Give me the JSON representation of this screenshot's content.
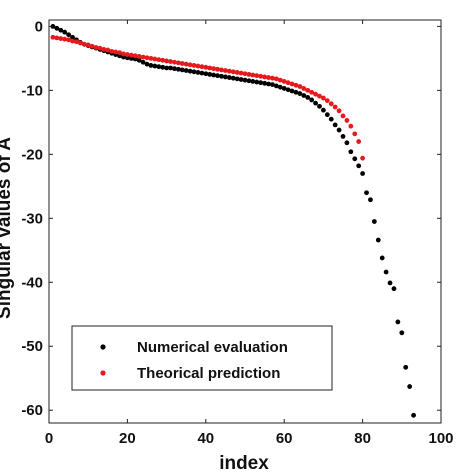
{
  "chart_data": {
    "type": "scatter",
    "xlabel": "index",
    "ylabel": "Singular values of A",
    "xlim": [
      0,
      100
    ],
    "ylim": [
      -62,
      1
    ],
    "x_ticks": [
      0,
      20,
      40,
      60,
      80,
      100
    ],
    "y_ticks": [
      0,
      -10,
      -20,
      -30,
      -40,
      -50,
      -60
    ],
    "x_tick_labels": [
      "0",
      "20",
      "40",
      "60",
      "80",
      "100"
    ],
    "y_tick_labels": [
      "0",
      "-10",
      "-20",
      "-30",
      "-40",
      "-50",
      "-60"
    ],
    "grid": false,
    "legend_position": "bottom-left",
    "series": [
      {
        "name": "Numerical evaluation",
        "color": "#000000",
        "x": [
          1,
          2,
          3,
          4,
          5,
          6,
          7,
          8,
          9,
          10,
          11,
          12,
          13,
          14,
          15,
          16,
          17,
          18,
          19,
          20,
          21,
          22,
          23,
          24,
          25,
          26,
          27,
          28,
          29,
          30,
          31,
          32,
          33,
          34,
          35,
          36,
          37,
          38,
          39,
          40,
          41,
          42,
          43,
          44,
          45,
          46,
          47,
          48,
          49,
          50,
          51,
          52,
          53,
          54,
          55,
          56,
          57,
          58,
          59,
          60,
          61,
          62,
          63,
          64,
          65,
          66,
          67,
          68,
          69,
          70,
          71,
          72,
          73,
          74,
          75,
          76,
          77,
          78,
          79,
          80,
          81,
          82,
          83,
          84,
          85,
          86,
          87,
          88,
          89,
          90,
          91,
          92,
          93
        ],
        "y": [
          0,
          -0.3,
          -0.6,
          -0.9,
          -1.3,
          -1.7,
          -2.1,
          -2.5,
          -2.8,
          -3.0,
          -3.2,
          -3.4,
          -3.6,
          -3.8,
          -4.0,
          -4.2,
          -4.4,
          -4.6,
          -4.8,
          -4.9,
          -5.0,
          -5.1,
          -5.3,
          -5.6,
          -5.9,
          -6.1,
          -6.2,
          -6.3,
          -6.4,
          -6.5,
          -6.5,
          -6.6,
          -6.7,
          -6.8,
          -6.9,
          -7.0,
          -7.1,
          -7.2,
          -7.3,
          -7.4,
          -7.5,
          -7.6,
          -7.7,
          -7.8,
          -7.9,
          -8.0,
          -8.1,
          -8.2,
          -8.3,
          -8.4,
          -8.5,
          -8.6,
          -8.7,
          -8.8,
          -8.9,
          -9.0,
          -9.1,
          -9.3,
          -9.5,
          -9.7,
          -9.9,
          -10.1,
          -10.3,
          -10.5,
          -10.8,
          -11.1,
          -11.5,
          -12.0,
          -12.5,
          -13.1,
          -13.8,
          -14.5,
          -15.4,
          -16.2,
          -17.2,
          -18.2,
          -19.6,
          -20.7,
          -21.8,
          -23.0,
          -26.0,
          -27.1,
          -30.5,
          -33.4,
          -36.2,
          -38.4,
          -40.1,
          -41.0,
          -46.2,
          -47.9,
          -53.3,
          -56.3,
          -60.8
        ]
      },
      {
        "name": "Theorical prediction",
        "color": "#e41a1c",
        "x": [
          1,
          2,
          3,
          4,
          5,
          6,
          7,
          8,
          9,
          10,
          11,
          12,
          13,
          14,
          15,
          16,
          17,
          18,
          19,
          20,
          21,
          22,
          23,
          24,
          25,
          26,
          27,
          28,
          29,
          30,
          31,
          32,
          33,
          34,
          35,
          36,
          37,
          38,
          39,
          40,
          41,
          42,
          43,
          44,
          45,
          46,
          47,
          48,
          49,
          50,
          51,
          52,
          53,
          54,
          55,
          56,
          57,
          58,
          59,
          60,
          61,
          62,
          63,
          64,
          65,
          66,
          67,
          68,
          69,
          70,
          71,
          72,
          73,
          74,
          75,
          76,
          77,
          78,
          79,
          80
        ],
        "y": [
          -1.7,
          -1.8,
          -1.9,
          -2.0,
          -2.1,
          -2.3,
          -2.4,
          -2.6,
          -2.8,
          -2.9,
          -3.1,
          -3.3,
          -3.4,
          -3.6,
          -3.7,
          -3.9,
          -4.0,
          -4.1,
          -4.3,
          -4.4,
          -4.5,
          -4.6,
          -4.7,
          -4.8,
          -4.9,
          -5.0,
          -5.1,
          -5.2,
          -5.3,
          -5.4,
          -5.5,
          -5.6,
          -5.7,
          -5.8,
          -5.9,
          -6.0,
          -6.1,
          -6.2,
          -6.3,
          -6.4,
          -6.5,
          -6.6,
          -6.7,
          -6.8,
          -6.9,
          -7.0,
          -7.1,
          -7.2,
          -7.3,
          -7.4,
          -7.5,
          -7.6,
          -7.7,
          -7.8,
          -7.9,
          -8.0,
          -8.1,
          -8.2,
          -8.4,
          -8.6,
          -8.8,
          -9.0,
          -9.2,
          -9.4,
          -9.7,
          -10.0,
          -10.3,
          -10.6,
          -10.9,
          -11.2,
          -11.6,
          -12.1,
          -12.6,
          -13.2,
          -14.0,
          -14.7,
          -15.6,
          -16.8,
          -18.0,
          -20.6
        ]
      }
    ]
  }
}
